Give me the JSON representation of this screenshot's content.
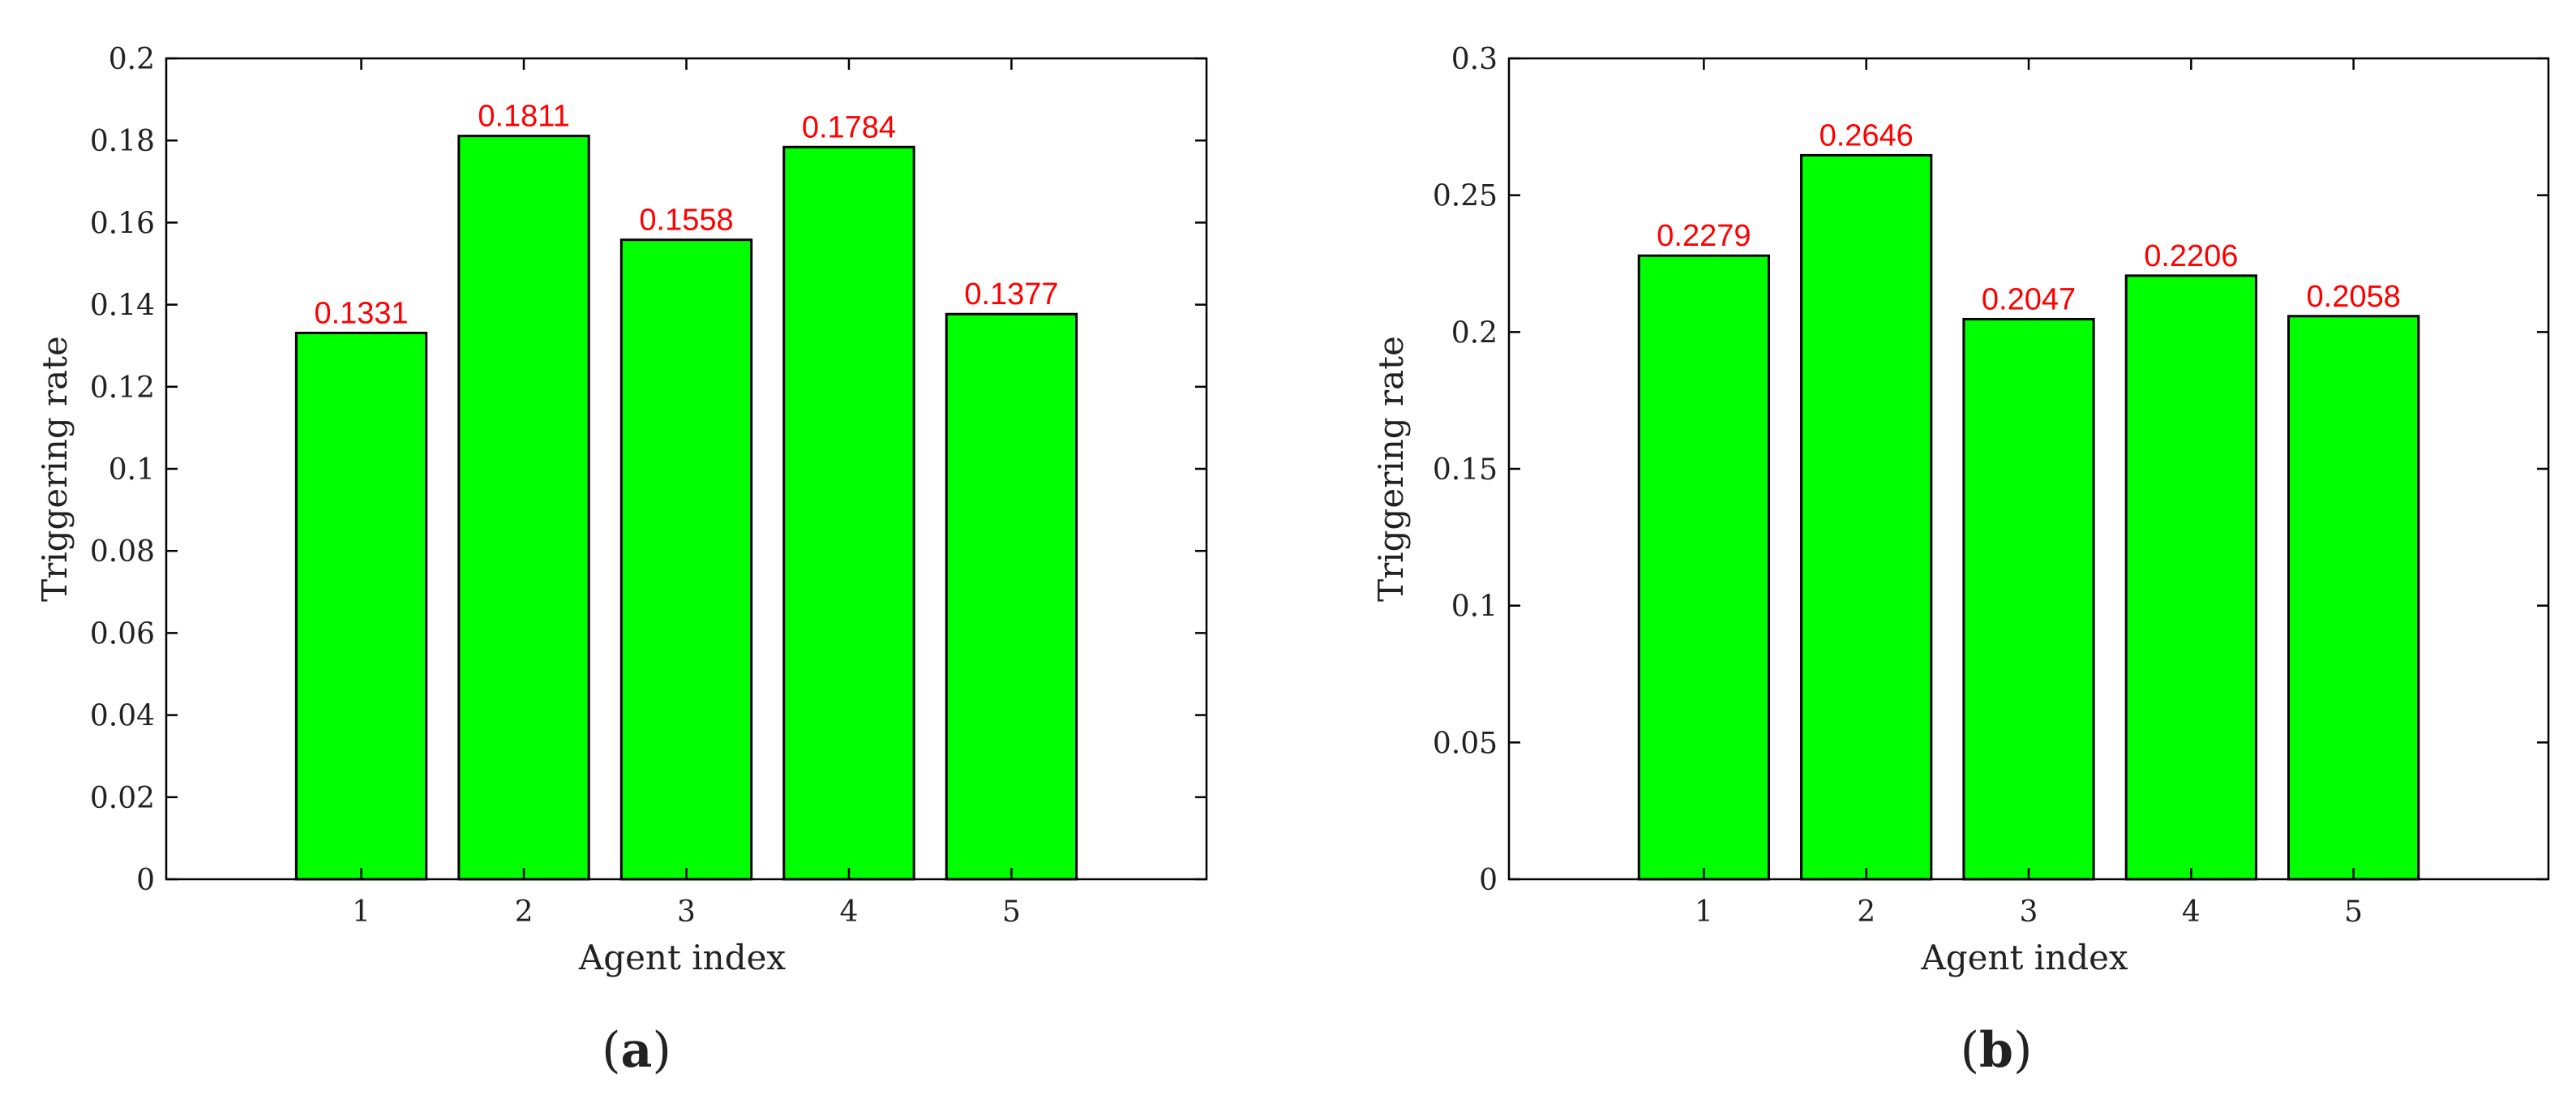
{
  "colors": {
    "bar_fill": "#00ff00",
    "bar_stroke": "#000000",
    "data_label": "#ff0000",
    "axes": "#000000"
  },
  "chart_data": [
    {
      "type": "bar",
      "panel": "(a)",
      "panel_parts": {
        "open": "(",
        "letter": "a",
        "close": ")"
      },
      "categories": [
        "1",
        "2",
        "3",
        "4",
        "5"
      ],
      "values": [
        0.1331,
        0.1811,
        0.1558,
        0.1784,
        0.1377
      ],
      "value_labels": [
        "0.1331",
        "0.1811",
        "0.1558",
        "0.1784",
        "0.1377"
      ],
      "xlabel": "Agent index",
      "ylabel": "Triggering rate",
      "xlim": [
        -0.2,
        6.2
      ],
      "ylim": [
        0,
        0.2
      ],
      "yticks": [
        0,
        0.02,
        0.04,
        0.06,
        0.08,
        0.1,
        0.12,
        0.14,
        0.16,
        0.18,
        0.2
      ],
      "ytick_labels": [
        "0",
        "0.02",
        "0.04",
        "0.06",
        "0.08",
        "0.1",
        "0.12",
        "0.14",
        "0.16",
        "0.18",
        "0.2"
      ],
      "bar_width": 0.8,
      "grid": false,
      "legend": "none"
    },
    {
      "type": "bar",
      "panel": "(b)",
      "panel_parts": {
        "open": "(",
        "letter": "b",
        "close": ")"
      },
      "categories": [
        "1",
        "2",
        "3",
        "4",
        "5"
      ],
      "values": [
        0.2279,
        0.2646,
        0.2047,
        0.2206,
        0.2058
      ],
      "value_labels": [
        "0.2279",
        "0.2646",
        "0.2047",
        "0.2206",
        "0.2058"
      ],
      "xlabel": "Agent index",
      "ylabel": "Triggering rate",
      "xlim": [
        -0.2,
        6.2
      ],
      "ylim": [
        0,
        0.3
      ],
      "yticks": [
        0,
        0.05,
        0.1,
        0.15,
        0.2,
        0.25,
        0.3
      ],
      "ytick_labels": [
        "0",
        "0.05",
        "0.1",
        "0.15",
        "0.2",
        "0.25",
        "0.3"
      ],
      "bar_width": 0.8,
      "grid": false,
      "legend": "none"
    }
  ]
}
